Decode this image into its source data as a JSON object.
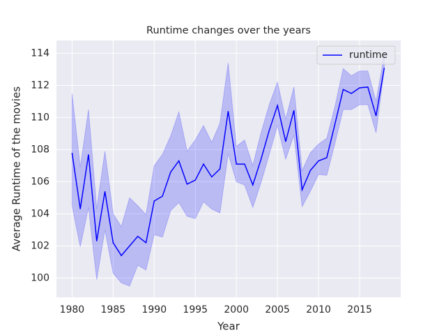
{
  "chart_data": {
    "type": "line",
    "title": "Runtime changes over the years",
    "x_label": "Year",
    "y_label": "Average Runtime of the movies",
    "x": [
      1980,
      1981,
      1982,
      1983,
      1984,
      1985,
      1986,
      1987,
      1988,
      1989,
      1990,
      1991,
      1992,
      1993,
      1994,
      1995,
      1996,
      1997,
      1998,
      1999,
      2000,
      2001,
      2002,
      2003,
      2004,
      2005,
      2006,
      2007,
      2008,
      2009,
      2010,
      2011,
      2012,
      2013,
      2014,
      2015,
      2016,
      2017,
      2018
    ],
    "series": [
      {
        "name": "runtime",
        "color": "#0000ff",
        "band_color": "#0000ff",
        "values": [
          107.8,
          104.3,
          107.7,
          102.3,
          105.4,
          102.2,
          101.4,
          102.0,
          102.6,
          102.2,
          104.8,
          105.1,
          106.6,
          107.3,
          105.85,
          106.1,
          107.1,
          106.3,
          106.8,
          110.4,
          107.1,
          107.1,
          105.8,
          107.4,
          109.2,
          110.75,
          108.5,
          110.45,
          105.5,
          106.7,
          107.3,
          107.5,
          109.6,
          111.75,
          111.5,
          111.85,
          111.9,
          110.1,
          113.1
        ],
        "upper": [
          111.5,
          106.9,
          110.5,
          104.3,
          107.9,
          104.0,
          103.2,
          105.0,
          104.5,
          103.95,
          107.0,
          107.7,
          108.85,
          110.35,
          107.9,
          108.6,
          109.5,
          108.45,
          109.65,
          113.4,
          108.2,
          108.6,
          107.0,
          109.05,
          110.8,
          112.2,
          109.9,
          111.9,
          106.7,
          107.8,
          108.35,
          108.7,
          110.7,
          113.05,
          112.6,
          112.9,
          112.9,
          111.0,
          113.9
        ],
        "lower": [
          104.5,
          101.95,
          104.4,
          99.9,
          103.0,
          100.3,
          99.7,
          99.5,
          100.8,
          100.5,
          102.7,
          102.55,
          104.2,
          104.7,
          103.85,
          103.7,
          104.75,
          104.3,
          104.05,
          107.75,
          106.0,
          105.8,
          104.4,
          105.95,
          107.7,
          109.5,
          107.4,
          108.9,
          104.45,
          105.4,
          106.45,
          106.4,
          108.4,
          110.5,
          110.5,
          110.8,
          110.8,
          109.05,
          113.0
        ]
      }
    ],
    "xlim": [
      1978.1,
      2020.0
    ],
    "ylim": [
      98.8,
      114.8
    ],
    "xticks": [
      1980,
      1985,
      1990,
      1995,
      2000,
      2005,
      2010,
      2015
    ],
    "yticks": [
      100,
      102,
      104,
      106,
      108,
      110,
      112,
      114
    ],
    "grid": true,
    "legend": "upper right"
  }
}
